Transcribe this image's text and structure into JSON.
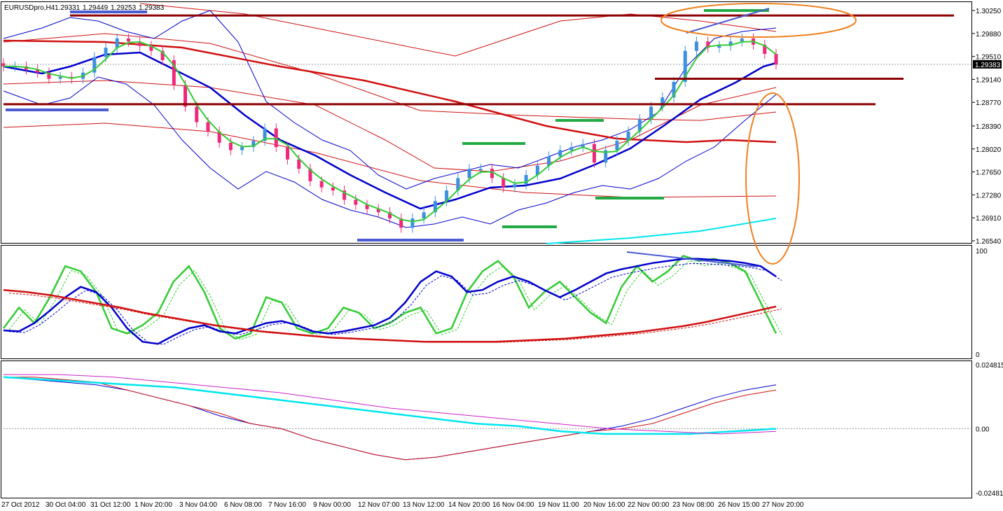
{
  "header": {
    "symbol": "EURUSDpro,H4",
    "open": "1.29331",
    "high": "1.29449",
    "low": "1.29253",
    "close": "1.29383"
  },
  "colors": {
    "bull": "#3d8fe0",
    "bear": "#f0287a",
    "ema_fast": "#33cc33",
    "ema_mid": "#0000cc",
    "ema_slow": "#d01010",
    "level_line": "#8b0000",
    "highlight_blue": "#4b5bd0",
    "highlight_green": "#22aa44",
    "ellipse": "#f08020",
    "cyan": "#00e5ee",
    "pink": "#cc22cc"
  },
  "chart_data": [
    {
      "type": "candlestick",
      "panel": "price",
      "y_ticks": [
        "1.30250",
        "1.29880",
        "1.29510",
        "1.29140",
        "1.28770",
        "1.28390",
        "1.28020",
        "1.27650",
        "1.27280",
        "1.26910",
        "1.26540"
      ],
      "current_price": "1.29383",
      "ylim": [
        1.2654,
        1.3025
      ],
      "x_labels": [
        "27 Oct 2012",
        "30 Oct 04:00",
        "31 Oct 12:00",
        "1 Nov 20:00",
        "3 Nov 04:00",
        "6 Nov 08:00",
        "7 Nov 16:00",
        "9 Nov 00:00",
        "12 Nov 07:00",
        "13 Nov 12:00",
        "14 Nov 20:00",
        "16 Nov 04:00",
        "19 Nov 11:00",
        "20 Nov 16:00",
        "22 Nov 00:00",
        "23 Nov 08:00",
        "26 Nov 15:00",
        "27 Nov 20:00"
      ],
      "horizontal_levels": [
        1.3017,
        1.2915,
        1.2874
      ],
      "close_trend": [
        1.2935,
        1.2935,
        1.293,
        1.2925,
        1.2915,
        1.2918,
        1.2915,
        1.2925,
        1.295,
        1.2965,
        1.298,
        1.2975,
        1.2968,
        1.296,
        1.2945,
        1.2905,
        1.287,
        1.2845,
        1.283,
        1.2812,
        1.28,
        1.2805,
        1.2815,
        1.2835,
        1.2805,
        1.2785,
        1.277,
        1.275,
        1.274,
        1.2735,
        1.272,
        1.2712,
        1.2705,
        1.27,
        1.269,
        1.2675,
        1.269,
        1.27,
        1.2718,
        1.2735,
        1.2755,
        1.277,
        1.277,
        1.2755,
        1.274,
        1.2745,
        1.276,
        1.2775,
        1.279,
        1.28,
        1.2805,
        1.281,
        1.278,
        1.28,
        1.2815,
        1.283,
        1.285,
        1.287,
        1.2885,
        1.291,
        1.296,
        1.2975,
        1.2965,
        1.2968,
        1.2975,
        1.298,
        1.297,
        1.2955,
        1.2938
      ]
    },
    {
      "type": "line",
      "panel": "stochastic",
      "y_ticks": [
        "100",
        "0"
      ],
      "ylim": [
        0,
        100
      ],
      "series": [
        {
          "values": [
            25,
            45,
            30,
            55,
            85,
            80,
            60,
            25,
            20,
            28,
            40,
            70,
            85,
            60,
            25,
            15,
            20,
            55,
            50,
            25,
            20,
            25,
            45,
            40,
            25,
            30,
            40,
            45,
            20,
            25,
            60,
            80,
            90,
            75,
            45,
            60,
            70,
            55,
            40,
            30,
            65,
            85,
            70,
            80,
            95,
            90,
            92,
            88,
            80,
            50,
            20
          ]
        },
        {
          "values": [
            23,
            22,
            30,
            42,
            55,
            65,
            60,
            45,
            25,
            12,
            10,
            18,
            25,
            28,
            22,
            20,
            25,
            30,
            32,
            28,
            22,
            20,
            22,
            25,
            28,
            35,
            50,
            70,
            80,
            75,
            60,
            62,
            70,
            75,
            70,
            62,
            55,
            62,
            70,
            78,
            82,
            85,
            88,
            90,
            92,
            92,
            91,
            90,
            88,
            85,
            75
          ]
        },
        {
          "values": [
            62,
            60,
            57,
            53,
            49,
            45,
            40,
            36,
            32,
            28,
            25,
            22,
            20,
            18,
            16,
            15,
            14,
            13,
            12,
            12,
            12,
            12,
            13,
            14,
            15,
            17,
            19,
            21,
            24,
            27,
            31,
            36,
            41,
            46
          ]
        }
      ]
    },
    {
      "type": "line",
      "panel": "oscillator",
      "y_ticks": [
        "0.024815",
        "0.00",
        "-0.02481"
      ],
      "ylim": [
        -0.02481,
        0.024815
      ],
      "series": [
        {
          "values": [
            0.02,
            0.019,
            0.018,
            0.017,
            0.015,
            0.012,
            0.009,
            0.005,
            0.002,
            0.0,
            -0.004,
            -0.007,
            -0.01,
            -0.012,
            -0.011,
            -0.009,
            -0.007,
            -0.005,
            -0.003,
            -0.001,
            0.001,
            0.004,
            0.008,
            0.012,
            0.015,
            0.017
          ]
        },
        {
          "values": [
            0.02,
            0.02,
            0.019,
            0.018,
            0.015,
            0.012,
            0.009,
            0.006,
            0.002,
            0.0,
            -0.004,
            -0.007,
            -0.01,
            -0.012,
            -0.011,
            -0.009,
            -0.007,
            -0.005,
            -0.003,
            -0.001,
            0.0,
            0.002,
            0.006,
            0.01,
            0.013,
            0.015
          ]
        },
        {
          "values": [
            0.02,
            0.019,
            0.018,
            0.017,
            0.016,
            0.014,
            0.012,
            0.01,
            0.008,
            0.006,
            0.004,
            0.002,
            0.001,
            -0.001,
            -0.002,
            -0.002,
            -0.002,
            -0.001,
            0.0
          ]
        },
        {
          "values": [
            0.021,
            0.021,
            0.02,
            0.018,
            0.016,
            0.014,
            0.011,
            0.008,
            0.006,
            0.004,
            0.002,
            0.0,
            -0.001,
            -0.002,
            -0.001
          ]
        }
      ]
    }
  ]
}
